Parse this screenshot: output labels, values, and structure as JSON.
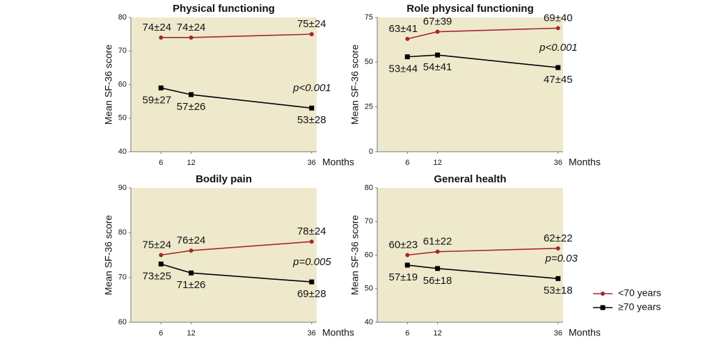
{
  "chart_data": [
    {
      "type": "line",
      "title": "Physical functioning",
      "xlabel": "Months",
      "ylabel": "Mean SF-36 score",
      "x": [
        6,
        12,
        36
      ],
      "xlim": [
        0,
        37
      ],
      "xticks": [
        6,
        12,
        36
      ],
      "ylim": [
        40,
        80
      ],
      "yticks": [
        40,
        50,
        60,
        70,
        80
      ],
      "annotation": "p<0.001",
      "series": [
        {
          "color": "#a3262e",
          "marker": "circle",
          "values": [
            74,
            74,
            75
          ],
          "value_labels": [
            "74±24",
            "74±24",
            "75±24"
          ]
        },
        {
          "color": "#000000",
          "marker": "square",
          "values": [
            59,
            57,
            53
          ],
          "value_labels": [
            "59±27",
            "57±26",
            "53±28"
          ]
        }
      ]
    },
    {
      "type": "line",
      "title": "Role physical functioning",
      "xlabel": "Months",
      "ylabel": "Mean SF-36 score",
      "x": [
        6,
        12,
        36
      ],
      "xlim": [
        0,
        37
      ],
      "xticks": [
        6,
        12,
        36
      ],
      "ylim": [
        0,
        75
      ],
      "yticks": [
        0,
        25,
        50,
        75
      ],
      "annotation": "p<0.001",
      "series": [
        {
          "color": "#a3262e",
          "marker": "circle",
          "values": [
            63,
            67,
            69
          ],
          "value_labels": [
            "63±41",
            "67±39",
            "69±40"
          ]
        },
        {
          "color": "#000000",
          "marker": "square",
          "values": [
            53,
            54,
            47
          ],
          "value_labels": [
            "53±44",
            "54±41",
            "47±45"
          ]
        }
      ]
    },
    {
      "type": "line",
      "title": "Bodily pain",
      "xlabel": "Months",
      "ylabel": "Mean SF-36 score",
      "x": [
        6,
        12,
        36
      ],
      "xlim": [
        0,
        37
      ],
      "xticks": [
        6,
        12,
        36
      ],
      "ylim": [
        60,
        90
      ],
      "yticks": [
        60,
        70,
        80,
        90
      ],
      "annotation": "p=0.005",
      "series": [
        {
          "color": "#a3262e",
          "marker": "circle",
          "values": [
            75,
            76,
            78
          ],
          "value_labels": [
            "75±24",
            "76±24",
            "78±24"
          ]
        },
        {
          "color": "#000000",
          "marker": "square",
          "values": [
            73,
            71,
            69
          ],
          "value_labels": [
            "73±25",
            "71±26",
            "69±28"
          ]
        }
      ]
    },
    {
      "type": "line",
      "title": "General health",
      "xlabel": "Months",
      "ylabel": "Mean SF-36 score",
      "x": [
        6,
        12,
        36
      ],
      "xlim": [
        0,
        37
      ],
      "xticks": [
        6,
        12,
        36
      ],
      "ylim": [
        40,
        80
      ],
      "yticks": [
        40,
        50,
        60,
        70,
        80
      ],
      "annotation": "p=0.03",
      "legend": "right",
      "series": [
        {
          "name": "<70 years",
          "color": "#a3262e",
          "marker": "circle",
          "values": [
            60,
            61,
            62
          ],
          "value_labels": [
            "60±23",
            "61±22",
            "62±22"
          ]
        },
        {
          "name": "≥70 years",
          "color": "#000000",
          "marker": "square",
          "values": [
            57,
            56,
            53
          ],
          "value_labels": [
            "57±19",
            "56±18",
            "53±18"
          ]
        }
      ]
    }
  ]
}
